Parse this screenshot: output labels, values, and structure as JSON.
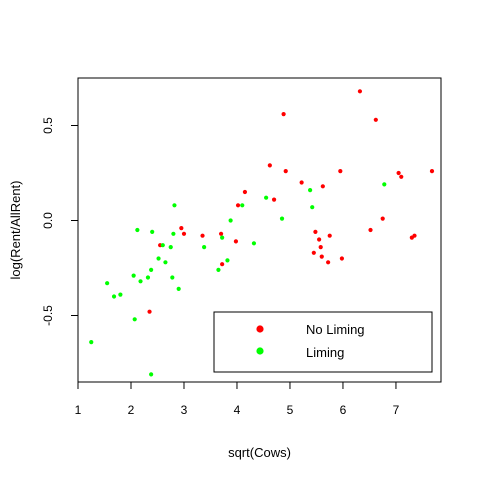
{
  "chart_data": {
    "type": "scatter",
    "xlabel": "sqrt(Cows)",
    "ylabel": "log(Rent/AllRent)",
    "xlim": [
      1.0,
      7.85
    ],
    "ylim": [
      -0.85,
      0.75
    ],
    "x_ticks": [
      1,
      2,
      3,
      4,
      5,
      6,
      7
    ],
    "x_tick_labels": [
      "1",
      "2",
      "3",
      "4",
      "5",
      "6",
      "7"
    ],
    "y_ticks": [
      -0.5,
      0.0,
      0.5
    ],
    "y_tick_labels": [
      "-0.5",
      "0.0",
      "0.5"
    ],
    "grid": false,
    "legend_position": "bottom-right",
    "series": [
      {
        "name": "No Liming",
        "color": "#ff0000",
        "points": [
          [
            2.35,
            -0.48
          ],
          [
            2.55,
            -0.13
          ],
          [
            2.95,
            -0.04
          ],
          [
            3.0,
            -0.07
          ],
          [
            3.35,
            -0.08
          ],
          [
            3.7,
            -0.07
          ],
          [
            3.72,
            -0.23
          ],
          [
            3.98,
            -0.11
          ],
          [
            4.02,
            0.08
          ],
          [
            4.15,
            0.15
          ],
          [
            4.62,
            0.29
          ],
          [
            4.7,
            0.11
          ],
          [
            4.88,
            0.56
          ],
          [
            4.92,
            0.26
          ],
          [
            5.22,
            0.2
          ],
          [
            5.45,
            -0.17
          ],
          [
            5.48,
            -0.06
          ],
          [
            5.55,
            -0.1
          ],
          [
            5.58,
            -0.14
          ],
          [
            5.6,
            -0.19
          ],
          [
            5.62,
            0.18
          ],
          [
            5.72,
            -0.22
          ],
          [
            5.75,
            -0.08
          ],
          [
            5.95,
            0.26
          ],
          [
            5.98,
            -0.2
          ],
          [
            6.32,
            0.68
          ],
          [
            6.52,
            -0.05
          ],
          [
            6.62,
            0.53
          ],
          [
            6.75,
            0.01
          ],
          [
            7.05,
            0.25
          ],
          [
            7.1,
            0.23
          ],
          [
            7.3,
            -0.09
          ],
          [
            7.35,
            -0.08
          ],
          [
            7.68,
            0.26
          ]
        ]
      },
      {
        "name": "Liming",
        "color": "#00ff00",
        "points": [
          [
            1.25,
            -0.64
          ],
          [
            1.55,
            -0.33
          ],
          [
            1.68,
            -0.4
          ],
          [
            1.8,
            -0.39
          ],
          [
            2.05,
            -0.29
          ],
          [
            2.07,
            -0.52
          ],
          [
            2.12,
            -0.05
          ],
          [
            2.18,
            -0.32
          ],
          [
            2.32,
            -0.3
          ],
          [
            2.38,
            -0.26
          ],
          [
            2.4,
            -0.06
          ],
          [
            2.52,
            -0.2
          ],
          [
            2.6,
            -0.13
          ],
          [
            2.65,
            -0.22
          ],
          [
            2.75,
            -0.14
          ],
          [
            2.78,
            -0.3
          ],
          [
            2.82,
            0.08
          ],
          [
            2.9,
            -0.36
          ],
          [
            2.8,
            -0.07
          ],
          [
            2.38,
            -0.81
          ],
          [
            3.38,
            -0.14
          ],
          [
            3.65,
            -0.26
          ],
          [
            3.72,
            -0.09
          ],
          [
            3.82,
            -0.21
          ],
          [
            3.88,
            0.0
          ],
          [
            4.1,
            0.08
          ],
          [
            4.32,
            -0.12
          ],
          [
            4.55,
            0.12
          ],
          [
            4.85,
            0.01
          ],
          [
            5.38,
            0.16
          ],
          [
            5.42,
            0.07
          ],
          [
            6.78,
            0.19
          ]
        ]
      }
    ]
  }
}
